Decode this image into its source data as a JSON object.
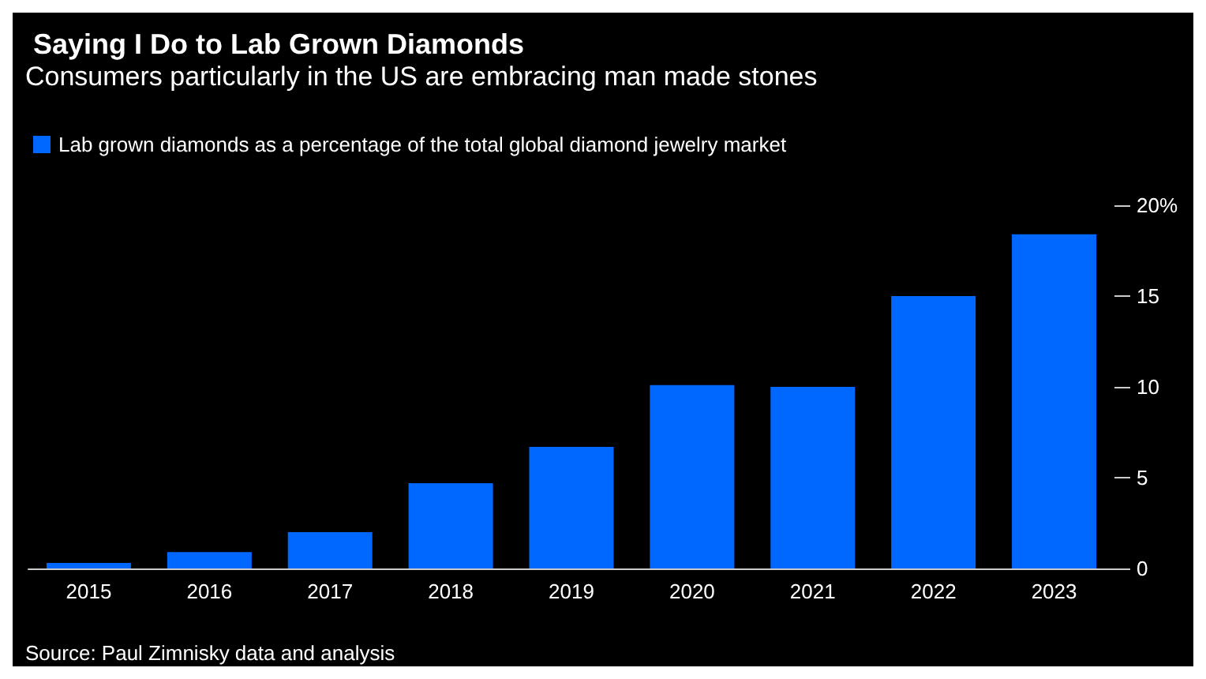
{
  "chart_data": {
    "type": "bar",
    "title": "Saying I Do to Lab Grown Diamonds",
    "subtitle": "Consumers particularly in the US are embracing man made stones",
    "categories": [
      "2015",
      "2016",
      "2017",
      "2018",
      "2019",
      "2020",
      "2021",
      "2022",
      "2023"
    ],
    "series": [
      {
        "name": "Lab grown diamonds as a percentage of the total global diamond jewelry market",
        "color": "#0068ff",
        "values": [
          0.3,
          0.9,
          2.0,
          4.7,
          6.7,
          10.1,
          10.0,
          15.0,
          18.4
        ]
      }
    ],
    "ylim": [
      0,
      20
    ],
    "yticks": [
      0,
      5,
      10,
      15,
      {
        "value": 20,
        "label": "20%"
      }
    ],
    "grid": false,
    "legend": "top left",
    "annotations": [
      "Source: Paul Zimnisky data and analysis"
    ]
  }
}
